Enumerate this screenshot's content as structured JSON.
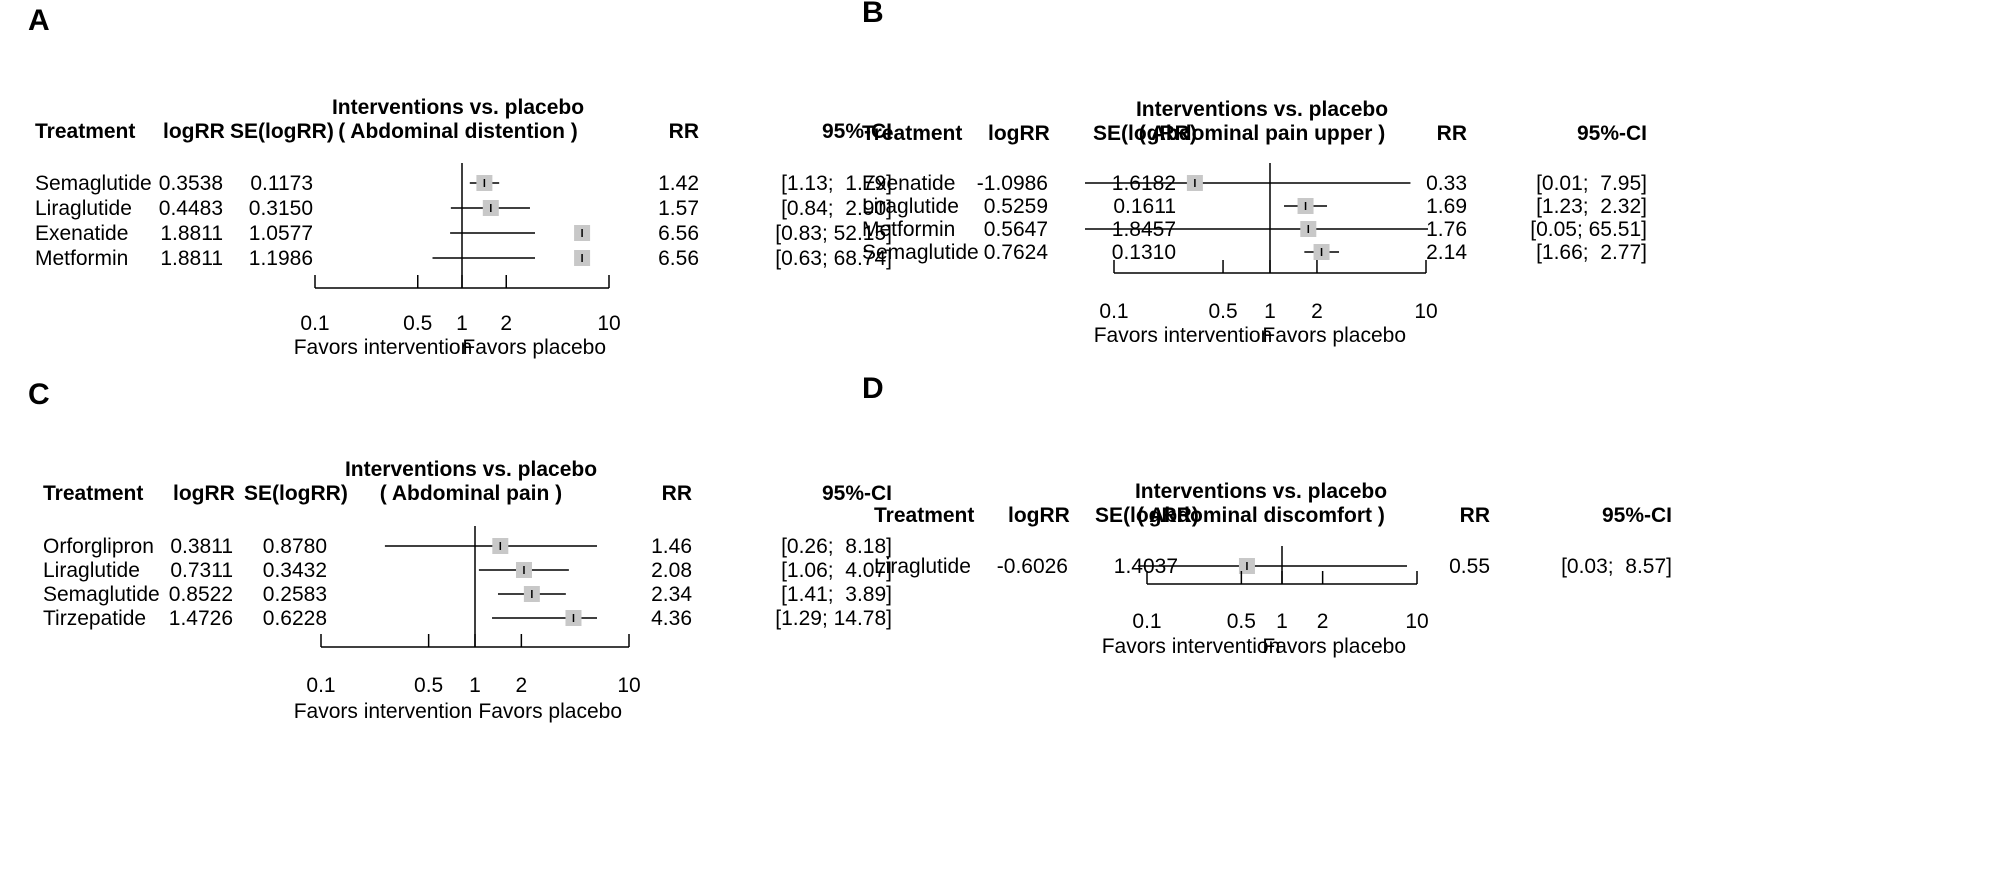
{
  "chart_data": [
    {
      "panel": "A",
      "type": "forest",
      "title_line1": "Interventions vs.  placebo",
      "title_line2": "( Abdominal distention )",
      "columns": {
        "treatment": "Treatment",
        "logrr": "logRR",
        "se": "SE(logRR)",
        "rr": "RR",
        "ci": "95%-CI"
      },
      "rows": [
        {
          "treatment": "Semaglutide",
          "logrr": "0.3538",
          "se": "0.1173",
          "rr": "1.42",
          "ci": "[1.13;  1.79]",
          "rr_val": 1.42,
          "lo": 1.13,
          "hi": 1.79
        },
        {
          "treatment": "Liraglutide",
          "logrr": "0.4483",
          "se": "0.3150",
          "rr": "1.57",
          "ci": "[0.84;  2.90]",
          "rr_val": 1.57,
          "lo": 0.84,
          "hi": 2.9
        },
        {
          "treatment": "Exenatide",
          "logrr": "1.8811",
          "se": "1.0577",
          "rr": "6.56",
          "ci": "[0.83; 52.15]",
          "rr_val": 6.56,
          "lo": 0.83,
          "hi": 52.15
        },
        {
          "treatment": "Metformin",
          "logrr": "1.8811",
          "se": "1.1986",
          "rr": "6.56",
          "ci": "[0.63; 68.74]",
          "rr_val": 6.56,
          "lo": 0.63,
          "hi": 68.74
        }
      ],
      "ticks": [
        0.1,
        0.5,
        1,
        2,
        10
      ],
      "tick_labels": [
        "0.1",
        "0.5",
        "1",
        "2",
        "10"
      ],
      "xlabel_left": "Favors intervention",
      "xlabel_right": "Favors placebo"
    },
    {
      "panel": "B",
      "type": "forest",
      "title_line1": "Interventions vs.  placebo",
      "title_line2": "( Abdominal pain upper )",
      "columns": {
        "treatment": "Treatment",
        "logrr": "logRR",
        "se": "SE(logRR)",
        "rr": "RR",
        "ci": "95%-CI"
      },
      "rows": [
        {
          "treatment": "Exenatide",
          "logrr": "-1.0986",
          "se": "1.6182",
          "rr": "0.33",
          "ci": "[0.01;  7.95]",
          "rr_val": 0.33,
          "lo": 0.01,
          "hi": 7.95
        },
        {
          "treatment": "Liraglutide",
          "logrr": "0.5259",
          "se": "0.1611",
          "rr": "1.69",
          "ci": "[1.23;  2.32]",
          "rr_val": 1.69,
          "lo": 1.23,
          "hi": 2.32
        },
        {
          "treatment": "Metformin",
          "logrr": "0.5647",
          "se": "1.8457",
          "rr": "1.76",
          "ci": "[0.05; 65.51]",
          "rr_val": 1.76,
          "lo": 0.05,
          "hi": 65.51
        },
        {
          "treatment": "Semaglutide",
          "logrr": "0.7624",
          "se": "0.1310",
          "rr": "2.14",
          "ci": "[1.66;  2.77]",
          "rr_val": 2.14,
          "lo": 1.66,
          "hi": 2.77
        }
      ],
      "ticks": [
        0.1,
        0.5,
        1,
        2,
        10
      ],
      "tick_labels": [
        "0.1",
        "0.5",
        "1",
        "2",
        "10"
      ],
      "xlabel_left": "Favors intervention",
      "xlabel_right": "Favors placebo"
    },
    {
      "panel": "C",
      "type": "forest",
      "title_line1": "Interventions vs.  placebo",
      "title_line2": "( Abdominal pain )",
      "columns": {
        "treatment": "Treatment",
        "logrr": "logRR",
        "se": "SE(logRR)",
        "rr": "RR",
        "ci": "95%-CI"
      },
      "rows": [
        {
          "treatment": "Orforglipron",
          "logrr": "0.3811",
          "se": "0.8780",
          "rr": "1.46",
          "ci": "[0.26;  8.18]",
          "rr_val": 1.46,
          "lo": 0.26,
          "hi": 8.18
        },
        {
          "treatment": "Liraglutide",
          "logrr": "0.7311",
          "se": "0.3432",
          "rr": "2.08",
          "ci": "[1.06;  4.07]",
          "rr_val": 2.08,
          "lo": 1.06,
          "hi": 4.07
        },
        {
          "treatment": "Semaglutide",
          "logrr": "0.8522",
          "se": "0.2583",
          "rr": "2.34",
          "ci": "[1.41;  3.89]",
          "rr_val": 2.34,
          "lo": 1.41,
          "hi": 3.89
        },
        {
          "treatment": "Tirzepatide",
          "logrr": "1.4726",
          "se": "0.6228",
          "rr": "4.36",
          "ci": "[1.29; 14.78]",
          "rr_val": 4.36,
          "lo": 1.29,
          "hi": 14.78
        }
      ],
      "ticks": [
        0.1,
        0.5,
        1,
        2,
        10
      ],
      "tick_labels": [
        "0.1",
        "0.5",
        "1",
        "2",
        "10"
      ],
      "xlabel_left": "Favors intervention",
      "xlabel_right": "Favors placebo"
    },
    {
      "panel": "D",
      "type": "forest",
      "title_line1": "Interventions vs.  placebo",
      "title_line2": "( Abdominal discomfort )",
      "columns": {
        "treatment": "Treatment",
        "logrr": "logRR",
        "se": "SE(logRR)",
        "rr": "RR",
        "ci": "95%-CI"
      },
      "rows": [
        {
          "treatment": "Liraglutide",
          "logrr": "-0.6026",
          "se": "1.4037",
          "rr": "0.55",
          "ci": "[0.03;  8.57]",
          "rr_val": 0.55,
          "lo": 0.03,
          "hi": 8.57
        }
      ],
      "ticks": [
        0.1,
        0.5,
        1,
        2,
        10
      ],
      "tick_labels": [
        "0.1",
        "0.5",
        "1",
        "2",
        "10"
      ],
      "xlabel_left": "Favors intervention",
      "xlabel_right": "Favors placebo"
    }
  ],
  "colors": {
    "box": "#c8c8c8",
    "line": "#000000"
  }
}
